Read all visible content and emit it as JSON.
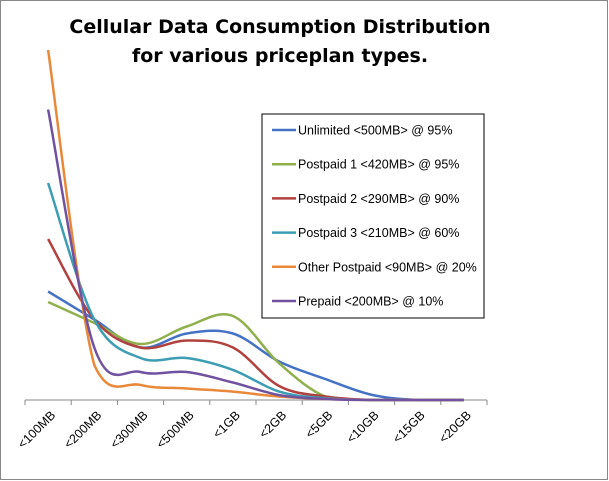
{
  "chart_data": {
    "type": "line",
    "title": [
      "Cellular Data Consumption Distribution",
      "for various priceplan types."
    ],
    "xlabel": "",
    "ylabel": "",
    "categories": [
      "<100MB",
      "<200MB",
      "<300MB",
      "<500MB",
      "<1GB",
      "<2GB",
      "<5GB",
      "<10GB",
      "<15GB",
      "<20GB"
    ],
    "ylim": [
      0,
      100
    ],
    "y_axis_labels_shown": false,
    "grid": false,
    "smoothed": true,
    "legend_position": "right",
    "series": [
      {
        "name": "Unlimited <500MB> @ 95%",
        "color": "#4472C4",
        "values": [
          31,
          23,
          15,
          19,
          19,
          11,
          6,
          1.5,
          0,
          0
        ]
      },
      {
        "name": "Postpaid 1 <420MB> @ 95%",
        "color": "#8FB04C",
        "values": [
          28,
          22,
          16,
          21,
          24,
          10.5,
          1,
          0,
          0,
          0
        ]
      },
      {
        "name": "Postpaid 2 <290MB> @ 90%",
        "color": "#B0413E",
        "values": [
          46,
          23,
          15,
          17,
          15,
          4,
          1,
          0,
          0,
          0
        ]
      },
      {
        "name": "Postpaid 3 <210MB> @ 60%",
        "color": "#3D9DB3",
        "values": [
          62,
          23,
          12,
          12,
          8.6,
          2.4,
          0.5,
          0,
          0,
          0
        ]
      },
      {
        "name": "Other Postpaid <90MB> @ 20%",
        "color": "#E8893A",
        "values": [
          100,
          10,
          4.3,
          3.3,
          2.4,
          1,
          0.3,
          0,
          0,
          0
        ]
      },
      {
        "name": "Prepaid <200MB> @ 10%",
        "color": "#7152A0",
        "values": [
          83,
          15,
          8,
          8,
          5,
          1.4,
          0.3,
          0,
          0,
          0
        ]
      }
    ]
  }
}
